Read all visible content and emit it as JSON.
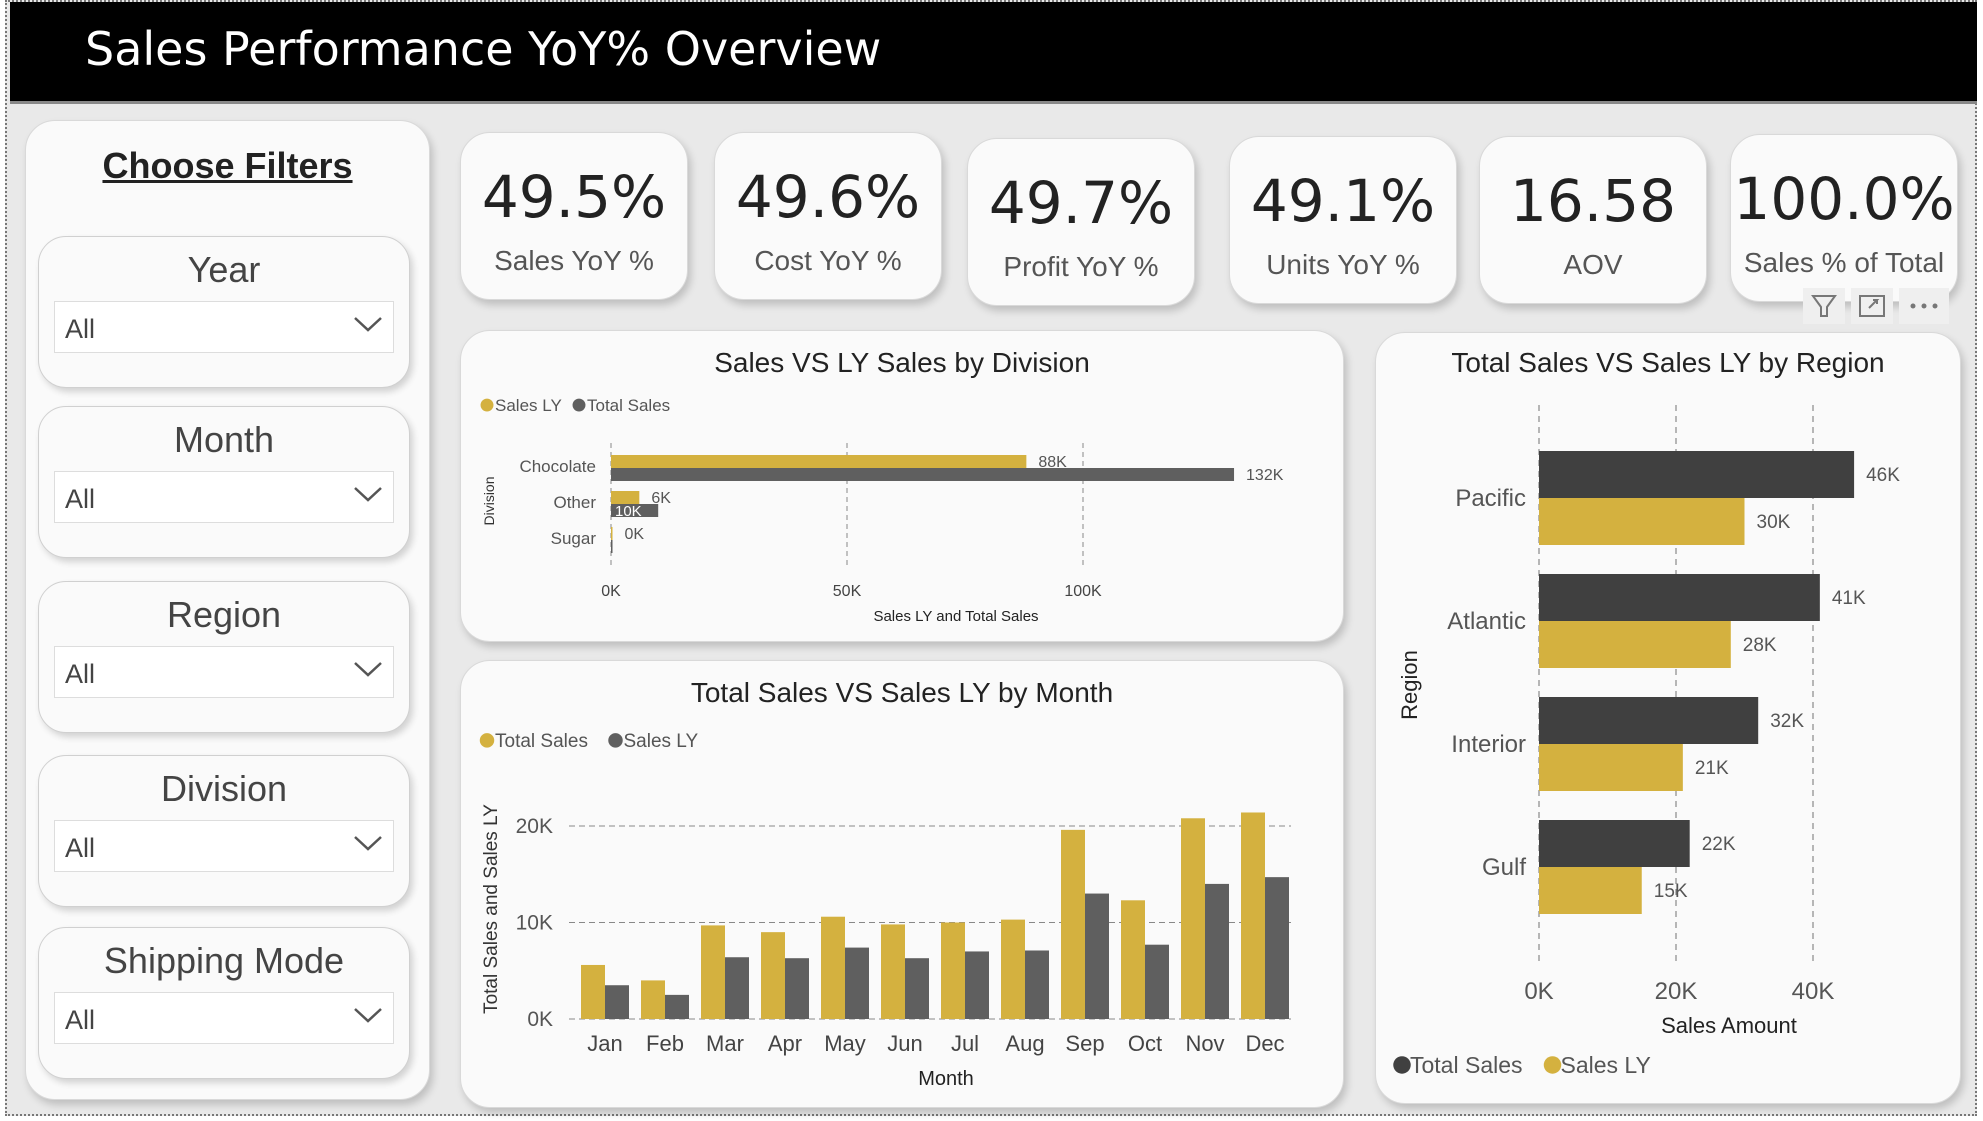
{
  "header": {
    "title": "Sales Performance YoY% Overview"
  },
  "filters": {
    "title": "Choose Filters",
    "slicers": [
      {
        "label": "Year",
        "value": "All"
      },
      {
        "label": "Month",
        "value": "All"
      },
      {
        "label": "Region",
        "value": "All"
      },
      {
        "label": "Division",
        "value": "All"
      },
      {
        "label": "Shipping Mode",
        "value": "All"
      }
    ]
  },
  "kpis": [
    {
      "value": "49.5%",
      "label": "Sales YoY %"
    },
    {
      "value": "49.6%",
      "label": "Cost YoY %"
    },
    {
      "value": "49.7%",
      "label": "Profit YoY %"
    },
    {
      "value": "49.1%",
      "label": "Units YoY %"
    },
    {
      "value": "16.58",
      "label": "AOV"
    },
    {
      "value": "100.0%",
      "label": "Sales % of Total"
    }
  ],
  "colors": {
    "gold": "#d4b13f",
    "dark": "#404040",
    "gray": "#5f5f5f"
  },
  "chart_data": [
    {
      "type": "bar",
      "orientation": "horizontal",
      "title": "Sales VS LY Sales by Division",
      "xlabel": "Sales LY and Total Sales",
      "ylabel": "Division",
      "categories": [
        "Chocolate",
        "Other",
        "Sugar"
      ],
      "series": [
        {
          "name": "Sales LY",
          "values": [
            88000,
            6000,
            0
          ],
          "labels": [
            "88K",
            "6K",
            "0K"
          ],
          "color": "#d4b13f"
        },
        {
          "name": "Total Sales",
          "values": [
            132000,
            10000,
            0
          ],
          "labels": [
            "132K",
            "10K",
            ""
          ],
          "color": "#5f5f5f"
        }
      ],
      "xlim": [
        0,
        130000
      ],
      "ticks": [
        {
          "v": 0,
          "label": "0K"
        },
        {
          "v": 50000,
          "label": "50K"
        },
        {
          "v": 100000,
          "label": "100K"
        }
      ],
      "legend": "top-left"
    },
    {
      "type": "bar",
      "title": "Total Sales VS Sales LY by Month",
      "xlabel": "Month",
      "ylabel": "Total Sales and Sales LY",
      "categories": [
        "Jan",
        "Feb",
        "Mar",
        "Apr",
        "May",
        "Jun",
        "Jul",
        "Aug",
        "Sep",
        "Oct",
        "Nov",
        "Dec"
      ],
      "series": [
        {
          "name": "Total Sales",
          "values": [
            5600,
            4000,
            9700,
            9000,
            10600,
            9800,
            10000,
            10300,
            19600,
            12300,
            20800,
            21400
          ],
          "color": "#d4b13f"
        },
        {
          "name": "Sales LY",
          "values": [
            3500,
            2500,
            6400,
            6300,
            7400,
            6300,
            7000,
            7100,
            13000,
            7700,
            14000,
            14700
          ],
          "color": "#5f5f5f"
        }
      ],
      "ylim": [
        0,
        22000
      ],
      "ticks": [
        {
          "v": 0,
          "label": "0K"
        },
        {
          "v": 10000,
          "label": "10K"
        },
        {
          "v": 20000,
          "label": "20K"
        }
      ],
      "legend": "top-left"
    },
    {
      "type": "bar",
      "orientation": "horizontal",
      "title": "Total Sales VS Sales LY by Region",
      "xlabel": "Sales Amount",
      "ylabel": "Region",
      "categories": [
        "Pacific",
        "Atlantic",
        "Interior",
        "Gulf"
      ],
      "series": [
        {
          "name": "Total Sales",
          "values": [
            46000,
            41000,
            32000,
            22000
          ],
          "labels": [
            "46K",
            "41K",
            "32K",
            "22K"
          ],
          "color": "#404040"
        },
        {
          "name": "Sales LY",
          "values": [
            30000,
            28000,
            21000,
            15000
          ],
          "labels": [
            "30K",
            "28K",
            "21K",
            "15K"
          ],
          "color": "#d4b13f"
        }
      ],
      "xlim": [
        0,
        50000
      ],
      "ticks": [
        {
          "v": 0,
          "label": "0K"
        },
        {
          "v": 20000,
          "label": "20K"
        },
        {
          "v": 40000,
          "label": "40K"
        }
      ],
      "legend": "bottom-left"
    }
  ]
}
